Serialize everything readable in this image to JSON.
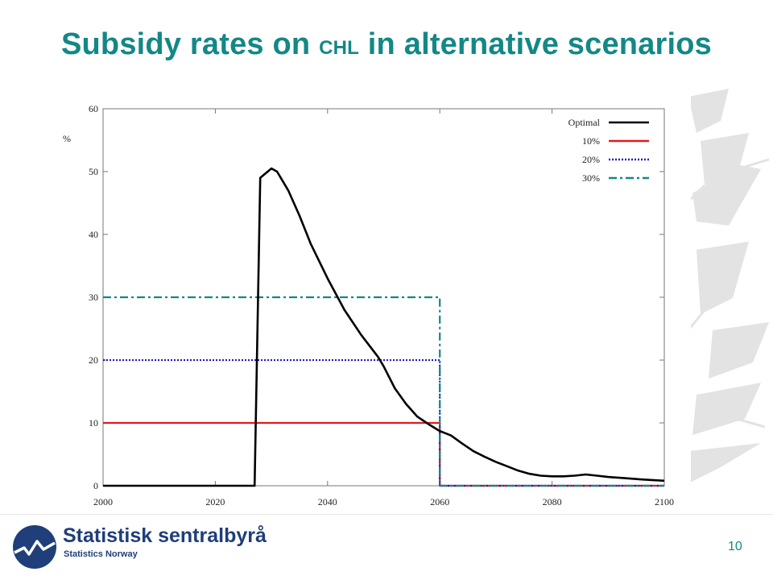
{
  "slide": {
    "title_part1": "Subsidy rates on ",
    "title_small": "CHL",
    "title_part2": " in alternative scenarios",
    "page_number": "10",
    "accent_color": "#138886"
  },
  "footer": {
    "brand": "Statistisk sentralbyrå",
    "brand_sub": "Statistics Norway",
    "brand_color": "#1f3e7a",
    "logo_icon": "ssb-logo-icon"
  },
  "chart_data": {
    "type": "line",
    "title": "",
    "xlabel": "",
    "ylabel": "%",
    "xlim": [
      2000,
      2100
    ],
    "ylim": [
      0,
      60
    ],
    "x_ticks": [
      2000,
      2020,
      2040,
      2060,
      2080,
      2100
    ],
    "y_ticks": [
      0,
      10,
      20,
      30,
      40,
      50,
      60
    ],
    "grid": false,
    "legend_position": "top-right",
    "series": [
      {
        "name": "Optimal",
        "color": "#000000",
        "style": "solid",
        "points": [
          [
            2000,
            0
          ],
          [
            2027,
            0
          ],
          [
            2028,
            49
          ],
          [
            2030,
            50.5
          ],
          [
            2031,
            50
          ],
          [
            2033,
            47
          ],
          [
            2035,
            43
          ],
          [
            2037,
            38.5
          ],
          [
            2040,
            33
          ],
          [
            2043,
            28
          ],
          [
            2046,
            24
          ],
          [
            2049,
            20.5
          ],
          [
            2050,
            19
          ],
          [
            2052,
            15.5
          ],
          [
            2054,
            13
          ],
          [
            2056,
            11
          ],
          [
            2058,
            9.8
          ],
          [
            2060,
            8.7
          ],
          [
            2062,
            8
          ],
          [
            2064,
            6.7
          ],
          [
            2066,
            5.5
          ],
          [
            2068,
            4.6
          ],
          [
            2070,
            3.8
          ],
          [
            2072,
            3.1
          ],
          [
            2074,
            2.4
          ],
          [
            2076,
            1.9
          ],
          [
            2078,
            1.6
          ],
          [
            2080,
            1.5
          ],
          [
            2082,
            1.5
          ],
          [
            2084,
            1.6
          ],
          [
            2086,
            1.8
          ],
          [
            2088,
            1.6
          ],
          [
            2090,
            1.4
          ],
          [
            2093,
            1.2
          ],
          [
            2096,
            1.0
          ],
          [
            2100,
            0.8
          ]
        ]
      },
      {
        "name": "10%",
        "color": "#e41a1c",
        "style": "solid",
        "points": [
          [
            2000,
            10
          ],
          [
            2060,
            10
          ],
          [
            2060,
            0
          ],
          [
            2100,
            0
          ]
        ]
      },
      {
        "name": "20%",
        "color": "#1f1fc8",
        "style": "dotted",
        "points": [
          [
            2000,
            20
          ],
          [
            2060,
            20
          ],
          [
            2060,
            0
          ],
          [
            2100,
            0
          ]
        ]
      },
      {
        "name": "30%",
        "color": "#138886",
        "style": "dashdot",
        "points": [
          [
            2000,
            30
          ],
          [
            2060,
            30
          ],
          [
            2060,
            0
          ],
          [
            2100,
            0
          ]
        ]
      }
    ]
  }
}
